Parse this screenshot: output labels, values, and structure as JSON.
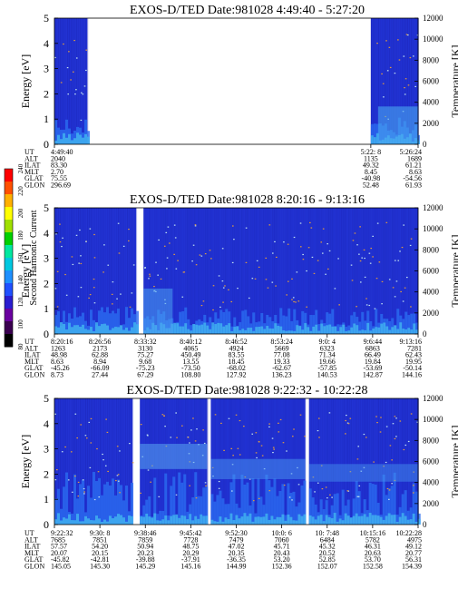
{
  "colorbar": {
    "label": "Second Harmonic Current",
    "ticks": [
      "80",
      "100",
      "120",
      "140",
      "160",
      "180",
      "200",
      "220",
      "240"
    ],
    "colors": [
      "#000000",
      "#3a0050",
      "#6a00a0",
      "#2a1dd0",
      "#2050ff",
      "#1e90ff",
      "#00c8e0",
      "#00e8a0",
      "#00d000",
      "#a0e000",
      "#ffff00",
      "#ffb000",
      "#ff5000",
      "#ff0000"
    ]
  },
  "chart_data": [
    {
      "type": "heatmap",
      "title": "EXOS-D/TED   Date:981028  4:49:40 - 5:27:20",
      "ylabel": "Energy [eV]",
      "y2label": "Temperature [K]",
      "ylim": [
        0,
        5
      ],
      "y2lim": [
        0,
        12000
      ],
      "yticks": [
        "0",
        "1",
        "2",
        "3",
        "4",
        "5"
      ],
      "y2ticks": [
        "0",
        "2000",
        "4000",
        "6000",
        "8000",
        "10000",
        "12000"
      ],
      "data_segments": [
        [
          0.0,
          0.09
        ],
        [
          0.87,
          1.0
        ]
      ],
      "ephemeris_labels": [
        "UT",
        "ALT",
        "ILAT",
        "MLT",
        "GLAT",
        "GLON"
      ],
      "ephemeris_columns": [
        {
          "pos": 0.0,
          "values": [
            "4:49:40",
            "2040",
            "83.30",
            "2.70",
            "75.55",
            "296.69"
          ]
        },
        {
          "pos": 0.87,
          "values": [
            "5:22: 8",
            "1135",
            "49.32",
            "8.45",
            "-40.98",
            "52.48"
          ]
        },
        {
          "pos": 1.0,
          "values": [
            "5:26:24",
            "1689",
            "61.21",
            "8.63",
            "-54.56",
            "61.93"
          ]
        }
      ]
    },
    {
      "type": "heatmap",
      "title": "EXOS-D/TED   Date:981028  8:20:16 - 9:13:16",
      "ylabel": "Energy [eV]",
      "y2label": "Temperature [K]",
      "ylim": [
        0,
        5
      ],
      "y2lim": [
        0,
        12000
      ],
      "yticks": [
        "0",
        "1",
        "2",
        "3",
        "4",
        "5"
      ],
      "y2ticks": [
        "0",
        "2000",
        "4000",
        "6000",
        "8000",
        "10000",
        "12000"
      ],
      "data_segments": [
        [
          0.0,
          0.225
        ],
        [
          0.245,
          1.0
        ]
      ],
      "ephemeris_labels": [
        "UT",
        "ALT",
        "ILAT",
        "MLT",
        "GLAT",
        "GLON"
      ],
      "ephemeris_columns": [
        {
          "pos": 0.0,
          "values": [
            "8:20:16",
            "1263",
            "48.98",
            "8.63",
            "-45.26",
            "8.73"
          ]
        },
        {
          "pos": 0.125,
          "values": [
            "8:26:56",
            "2173",
            "62.88",
            "8.94",
            "-66.09",
            "27.44"
          ]
        },
        {
          "pos": 0.25,
          "values": [
            "8:33:32",
            "3130",
            "75.27",
            "9.68",
            "-75.23",
            "67.29"
          ]
        },
        {
          "pos": 0.375,
          "values": [
            "8:40:12",
            "4065",
            "450.49",
            "13.55",
            "-73.50",
            "108.80"
          ]
        },
        {
          "pos": 0.5,
          "values": [
            "8:46:52",
            "4924",
            "83.55",
            "18.45",
            "-68.02",
            "127.92"
          ]
        },
        {
          "pos": 0.625,
          "values": [
            "8:53:24",
            "5669",
            "77.08",
            "19.33",
            "-62.67",
            "136.23"
          ]
        },
        {
          "pos": 0.75,
          "values": [
            "9:0: 4",
            "6323",
            "71.34",
            "19.66",
            "-57.85",
            "140.53"
          ]
        },
        {
          "pos": 0.875,
          "values": [
            "9:6:44",
            "6863",
            "66.49",
            "19.84",
            "-53.69",
            "142.87"
          ]
        },
        {
          "pos": 1.0,
          "values": [
            "9:13:16",
            "7281",
            "62.43",
            "19.95",
            "-50.14",
            "144.16"
          ]
        }
      ]
    },
    {
      "type": "heatmap",
      "title": "EXOS-D/TED   Date:981028  9:22:32 - 10:22:28",
      "ylabel": "Energy [eV]",
      "y2label": "Temperature [K]",
      "ylim": [
        0,
        5
      ],
      "y2lim": [
        0,
        12000
      ],
      "yticks": [
        "0",
        "1",
        "2",
        "3",
        "4",
        "5"
      ],
      "y2ticks": [
        "0",
        "2000",
        "4000",
        "6000",
        "8000",
        "10000",
        "12000"
      ],
      "data_segments": [
        [
          0.0,
          0.215
        ],
        [
          0.235,
          0.42
        ],
        [
          0.43,
          0.69
        ],
        [
          0.7,
          1.0
        ]
      ],
      "ephemeris_labels": [
        "UT",
        "ALT",
        "ILAT",
        "MLT",
        "GLAT",
        "GLON"
      ],
      "ephemeris_columns": [
        {
          "pos": 0.0,
          "values": [
            "9:22:32",
            "7685",
            "57.57",
            "20.07",
            "-45.82",
            "145.05"
          ]
        },
        {
          "pos": 0.125,
          "values": [
            "9:30: 8",
            "7851",
            "54.20",
            "20.15",
            "-42.81",
            "145.30"
          ]
        },
        {
          "pos": 0.25,
          "values": [
            "9:38:46",
            "7859",
            "50.94",
            "20.23",
            "-39.88",
            "145.29"
          ]
        },
        {
          "pos": 0.375,
          "values": [
            "9:45:42",
            "7728",
            "48.75",
            "20.29",
            "-37.91",
            "145.16"
          ]
        },
        {
          "pos": 0.5,
          "values": [
            "9:52:30",
            "7479",
            "47.02",
            "20.35",
            "-36.35",
            "144.99"
          ]
        },
        {
          "pos": 0.625,
          "values": [
            "10:0: 6",
            "7060",
            "45.71",
            "20.43",
            "53.20",
            "152.36"
          ]
        },
        {
          "pos": 0.75,
          "values": [
            "10: 7:48",
            "6484",
            "45.32",
            "20.52",
            "52.85",
            "152.07"
          ]
        },
        {
          "pos": 0.875,
          "values": [
            "10:15:16",
            "5782",
            "46.31",
            "20.63",
            "53.70",
            "152.58"
          ]
        },
        {
          "pos": 1.0,
          "values": [
            "10:22:28",
            "4975",
            "49.12",
            "20.77",
            "56.31",
            "154.39"
          ]
        }
      ]
    }
  ]
}
